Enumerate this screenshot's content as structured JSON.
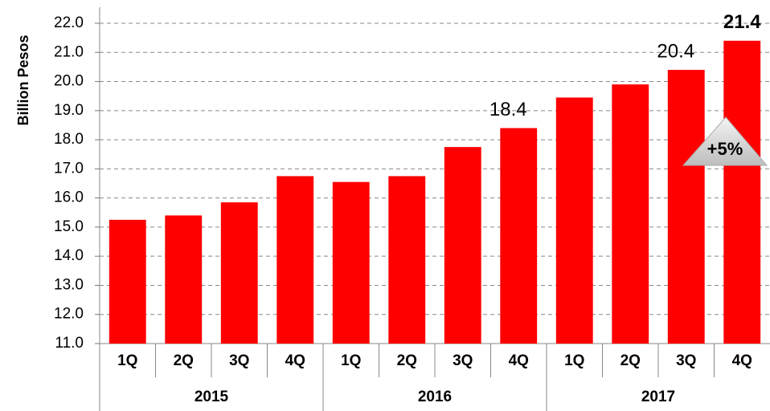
{
  "chart_data": {
    "type": "bar",
    "y_axis_label": "Billion Pesos",
    "categories": [
      "1Q",
      "2Q",
      "3Q",
      "4Q",
      "1Q",
      "2Q",
      "3Q",
      "4Q",
      "1Q",
      "2Q",
      "3Q",
      "4Q"
    ],
    "groups": [
      "2015",
      "2016",
      "2017"
    ],
    "values": [
      15.25,
      15.4,
      15.85,
      16.75,
      16.55,
      16.75,
      17.75,
      18.4,
      19.45,
      19.9,
      20.4,
      21.4
    ],
    "value_labels": [
      null,
      null,
      null,
      null,
      null,
      null,
      null,
      "18.4",
      null,
      null,
      "20.4",
      "21.4"
    ],
    "color": "#ff0000",
    "ylim": [
      11,
      22
    ],
    "yticks": [
      {
        "value": 11,
        "label": "11.0"
      },
      {
        "value": 12,
        "label": "12.0"
      },
      {
        "value": 13,
        "label": "13.0"
      },
      {
        "value": 14,
        "label": "14.0"
      },
      {
        "value": 15,
        "label": "15.0"
      },
      {
        "value": 16,
        "label": "16.0"
      },
      {
        "value": 17,
        "label": "17.0"
      },
      {
        "value": 18,
        "label": "18.0"
      },
      {
        "value": 19,
        "label": "19.0"
      },
      {
        "value": 20,
        "label": "20.0"
      },
      {
        "value": 21,
        "label": "21.0"
      },
      {
        "value": 22,
        "label": "22.0"
      }
    ],
    "grid": true,
    "annotation": "+5%"
  }
}
